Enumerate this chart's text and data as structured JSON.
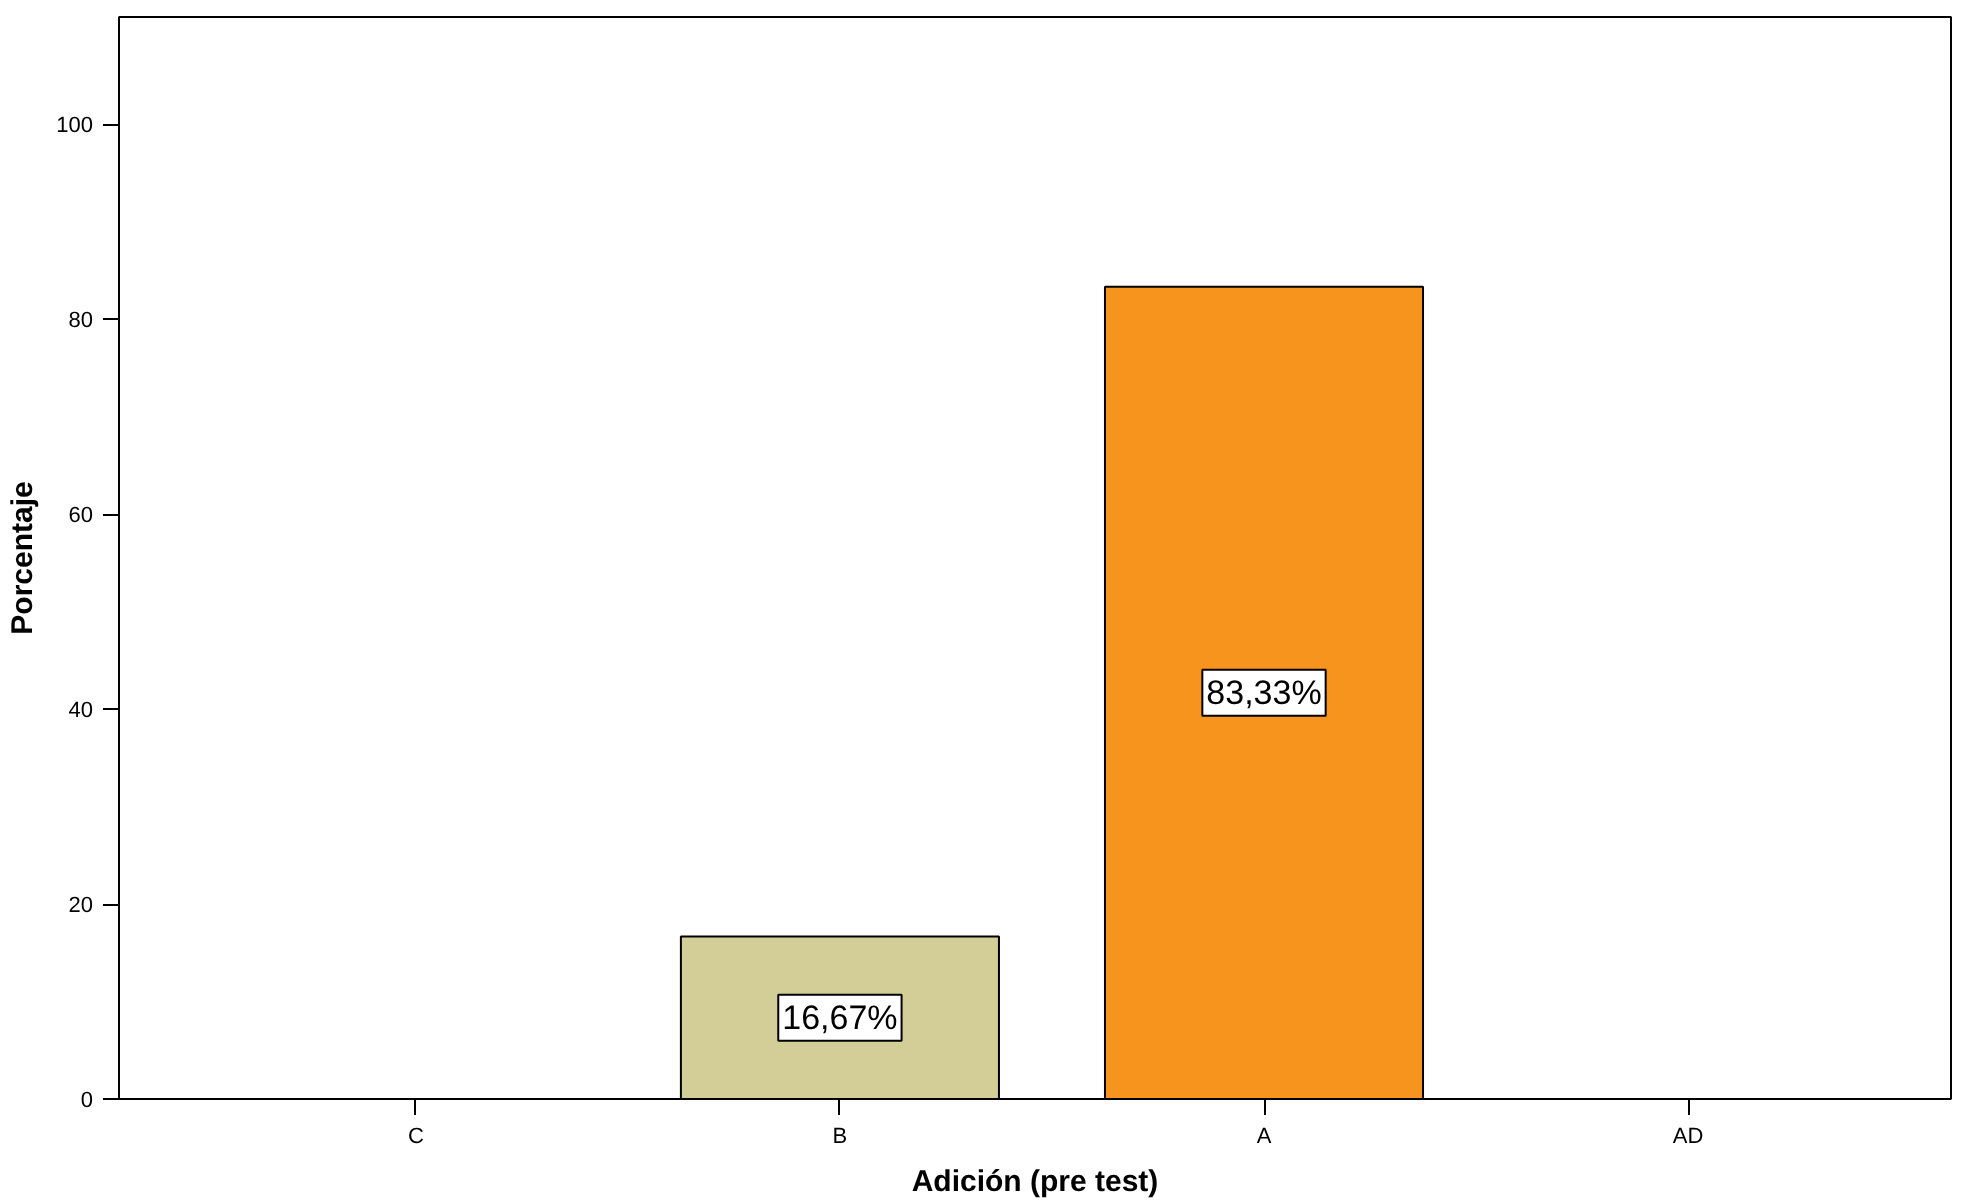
{
  "chart_data": {
    "type": "bar",
    "xlabel": "Adición (pre test)",
    "ylabel": "Porcentaje",
    "categories": [
      "C",
      "B",
      "A",
      "AD"
    ],
    "values": [
      null,
      16.67,
      83.33,
      null
    ],
    "value_labels": [
      null,
      "16,67%",
      "83,33%",
      null
    ],
    "colors": [
      "#d3ce97",
      "#d3ce97",
      "#f7941d",
      "#f7941d"
    ],
    "ylim": [
      0,
      111
    ],
    "yticks": [
      0,
      20,
      40,
      60,
      80,
      100
    ],
    "grid": false
  }
}
